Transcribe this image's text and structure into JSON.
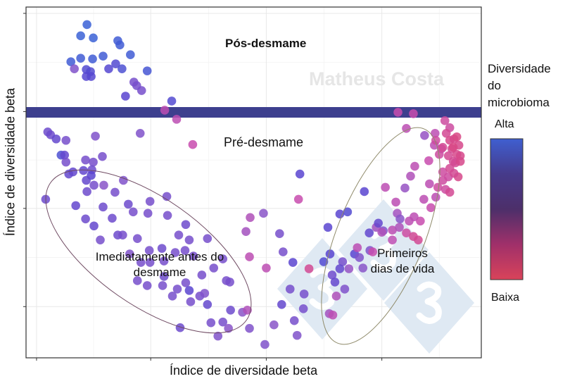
{
  "chart_data": {
    "type": "scatter",
    "title": "",
    "xlabel": "Índice de diversidade beta",
    "ylabel": "Índice de diversidade beta",
    "xlim": [
      0,
      130
    ],
    "ylim": [
      0,
      100
    ],
    "grid": true,
    "tick_labels_shown": false,
    "legend": {
      "title_lines": [
        "Diversidade",
        "do",
        "microbioma"
      ],
      "high_label": "Alta",
      "low_label": "Baixa",
      "placement": "right",
      "gradient_colors": [
        "#3f5fd0",
        "#463a8a",
        "#4d2f6a",
        "#a0306a",
        "#d9435a"
      ]
    },
    "point_colors": {
      "high": "#3b62d6",
      "mid_high": "#5a45d0",
      "mid": "#8a55c8",
      "mid_low": "#c84cae",
      "low": "#e2456a"
    },
    "divider_color": "#3d3f8e",
    "annotations": {
      "post": "Pós-desmame",
      "pre": "Pré-desmame",
      "before_weaning": [
        "Imediatamente antes do",
        "desmame"
      ],
      "first_days": [
        "Primeiros",
        "dias de vida"
      ]
    },
    "watermark": "Matheus Costa",
    "points_note_fields": [
      "x",
      "y",
      "diversity"
    ],
    "points": [
      [
        17.4,
        95,
        1
      ],
      [
        15.6,
        91.8,
        1
      ],
      [
        19.2,
        91.2,
        1
      ],
      [
        26.2,
        90.4,
        0.95
      ],
      [
        26.8,
        89.2,
        0.95
      ],
      [
        29.8,
        86.4,
        0.95
      ],
      [
        12.8,
        84.4,
        0.95
      ],
      [
        15.6,
        85.4,
        0.95
      ],
      [
        19,
        85.2,
        0.95
      ],
      [
        22,
        86,
        0.95
      ],
      [
        25.6,
        83.8,
        0.8
      ],
      [
        27.4,
        82.4,
        0.85
      ],
      [
        17.2,
        82.2,
        0.8
      ],
      [
        18.4,
        81.6,
        0.8
      ],
      [
        17.2,
        80.2,
        0.78
      ],
      [
        18.6,
        80.2,
        0.78
      ],
      [
        23.6,
        82.4,
        0.78
      ],
      [
        34.6,
        81.8,
        0.9
      ],
      [
        13.8,
        82.4,
        0.55
      ],
      [
        30.8,
        78.6,
        0.6
      ],
      [
        31.6,
        77.6,
        0.6
      ],
      [
        33,
        76.2,
        0.6
      ],
      [
        28.4,
        74.6,
        0.75
      ],
      [
        41.6,
        73.2,
        0.8
      ],
      [
        39.6,
        70.6,
        0.3
      ],
      [
        43,
        68,
        0.3
      ],
      [
        6.2,
        64.4,
        0.65
      ],
      [
        7,
        63.6,
        0.65
      ],
      [
        8.6,
        62.4,
        0.7
      ],
      [
        11.4,
        62,
        0.6
      ],
      [
        19.8,
        63.2,
        0.55
      ],
      [
        32.6,
        64,
        0.55
      ],
      [
        47.6,
        60.8,
        0.25
      ],
      [
        10,
        57.8,
        0.85
      ],
      [
        11,
        57.8,
        0.7
      ],
      [
        11.4,
        55.8,
        0.6
      ],
      [
        17,
        56.4,
        0.6
      ],
      [
        19.2,
        55.8,
        0.6
      ],
      [
        21.8,
        57.4,
        0.6
      ],
      [
        13.4,
        53,
        0.7
      ],
      [
        12.2,
        52.4,
        0.7
      ],
      [
        16.4,
        53.4,
        0.7
      ],
      [
        18.8,
        53.6,
        0.65
      ],
      [
        18.6,
        52,
        0.75
      ],
      [
        17.2,
        50.6,
        0.7
      ],
      [
        19.4,
        49.2,
        0.6
      ],
      [
        17.4,
        47.4,
        0.65
      ],
      [
        22.2,
        49.2,
        0.5
      ],
      [
        27.8,
        50.6,
        0.55
      ],
      [
        25.4,
        47.2,
        0.6
      ],
      [
        5.6,
        45.2,
        0.65
      ],
      [
        14.2,
        43.4,
        0.7
      ],
      [
        22,
        43,
        0.65
      ],
      [
        29.2,
        43.8,
        0.65
      ],
      [
        35.4,
        44.6,
        0.6
      ],
      [
        40.2,
        46,
        0.6
      ],
      [
        17,
        39.6,
        0.65
      ],
      [
        19.4,
        37.6,
        0.7
      ],
      [
        24.6,
        39.8,
        0.65
      ],
      [
        30.6,
        41.6,
        0.6
      ],
      [
        34.8,
        41.2,
        0.6
      ],
      [
        21.2,
        33.6,
        0.6
      ],
      [
        26.2,
        35,
        0.65
      ],
      [
        27.6,
        35,
        0.6
      ],
      [
        31.8,
        34,
        0.6
      ],
      [
        40.4,
        40.6,
        0.6
      ],
      [
        45.6,
        38,
        0.65
      ],
      [
        43.6,
        35,
        0.6
      ],
      [
        46.6,
        33.6,
        0.6
      ],
      [
        51.8,
        34,
        0.6
      ],
      [
        38.8,
        31.2,
        0.65
      ],
      [
        35.2,
        30.6,
        0.6
      ],
      [
        42.6,
        30,
        0.6
      ],
      [
        45.4,
        30.6,
        0.6
      ],
      [
        29.6,
        29.6,
        0.55
      ],
      [
        32.8,
        27.2,
        0.6
      ],
      [
        35.4,
        27.2,
        0.6
      ],
      [
        39.4,
        27.6,
        0.6
      ],
      [
        47.8,
        29,
        0.6
      ],
      [
        56.2,
        28.2,
        0.6
      ],
      [
        39.4,
        23.2,
        0.65
      ],
      [
        31.8,
        22,
        0.6
      ],
      [
        34.6,
        20.6,
        0.6
      ],
      [
        39,
        20.6,
        0.6
      ],
      [
        45.6,
        21.4,
        0.6
      ],
      [
        50.2,
        23.6,
        0.6
      ],
      [
        53.6,
        25.6,
        0.6
      ],
      [
        57.2,
        22,
        0.6
      ],
      [
        63.8,
        28.8,
        0.3
      ],
      [
        43.2,
        19.6,
        0.6
      ],
      [
        46.6,
        19.2,
        0.75
      ],
      [
        49.6,
        17.6,
        0.6
      ],
      [
        51.8,
        15.2,
        0.7
      ],
      [
        47,
        16,
        0.6
      ],
      [
        51,
        18.4,
        0.55
      ],
      [
        58.2,
        21.6,
        0.6
      ],
      [
        41.8,
        17.6,
        0.6
      ],
      [
        58.4,
        13.6,
        0.65
      ],
      [
        61.8,
        13,
        0.5
      ],
      [
        63.2,
        13.6,
        0.35
      ],
      [
        52.8,
        10,
        0.6
      ],
      [
        56.2,
        10.2,
        0.6
      ],
      [
        44,
        8.6,
        0.65
      ],
      [
        57.8,
        8.4,
        0.5
      ],
      [
        54.8,
        6.2,
        0.55
      ],
      [
        63.8,
        8.4,
        0.55
      ],
      [
        68.2,
        3.8,
        0.55
      ],
      [
        64,
        40,
        0.35
      ],
      [
        62.8,
        36,
        0.4
      ],
      [
        67.8,
        41.2,
        0.5
      ],
      [
        72.4,
        35.4,
        0.6
      ],
      [
        73.4,
        30.2,
        0.6
      ],
      [
        68.6,
        25.6,
        0.3
      ],
      [
        76.2,
        27.2,
        0.75
      ],
      [
        78.2,
        52.4,
        0.75
      ],
      [
        77.8,
        45.2,
        0.25
      ],
      [
        75.4,
        19.6,
        0.6
      ],
      [
        73,
        15.2,
        0.7
      ],
      [
        79.2,
        14,
        0.6
      ],
      [
        70.8,
        9.4,
        0.5
      ],
      [
        76.6,
        10.6,
        0.6
      ],
      [
        80.8,
        25.4,
        0.15
      ],
      [
        77.4,
        6.4,
        0.55
      ],
      [
        86.2,
        37.2,
        0.75
      ],
      [
        89.6,
        41,
        0.75
      ],
      [
        91.8,
        41.6,
        0.8
      ],
      [
        96.6,
        47.4,
        0.75
      ],
      [
        102.6,
        48.6,
        0.3
      ],
      [
        105.6,
        44.4,
        0.3
      ],
      [
        108.2,
        48.4,
        0.45
      ],
      [
        109.8,
        51.8,
        0.35
      ],
      [
        111,
        54.6,
        0.3
      ],
      [
        115,
        56.2,
        0.25
      ],
      [
        113.8,
        63.4,
        0.45
      ],
      [
        116.8,
        64,
        0.3
      ],
      [
        108.6,
        65.4,
        0.3
      ],
      [
        106.2,
        70,
        0.25
      ],
      [
        110.6,
        69.6,
        0.25
      ],
      [
        98,
        35.6,
        0.7
      ],
      [
        100,
        37.2,
        0.4
      ],
      [
        102,
        36.2,
        0.55
      ],
      [
        100.6,
        38.4,
        0.7
      ],
      [
        93.8,
        29.6,
        0.75
      ],
      [
        95.2,
        28.6,
        0.55
      ],
      [
        98.2,
        30.6,
        0.55
      ],
      [
        101.6,
        35.8,
        0.35
      ],
      [
        104.6,
        36.4,
        0.3
      ],
      [
        106.6,
        37.2,
        0.35
      ],
      [
        106,
        41.2,
        0.4
      ],
      [
        106.8,
        39.6,
        0.5
      ],
      [
        109.4,
        39,
        0.3
      ],
      [
        112.6,
        39,
        0.25
      ],
      [
        110.8,
        40.2,
        0.3
      ],
      [
        113.6,
        45.2,
        0.3
      ],
      [
        117,
        45.8,
        0.3
      ],
      [
        115.6,
        42.8,
        0.25
      ],
      [
        119.8,
        48,
        0.2
      ],
      [
        121,
        47.2,
        0.15
      ],
      [
        119,
        53,
        0.2
      ],
      [
        120.6,
        57.6,
        0.15
      ],
      [
        121.6,
        59.6,
        0.15
      ],
      [
        122.2,
        62.4,
        0.12
      ],
      [
        121,
        65.6,
        0.2
      ],
      [
        119.6,
        67.6,
        0.2
      ],
      [
        122.6,
        55.6,
        0.15
      ],
      [
        123.4,
        51.6,
        0.12
      ],
      [
        120.6,
        51.6,
        0.2
      ],
      [
        123.6,
        60.6,
        0.12
      ],
      [
        124,
        57.6,
        0.12
      ],
      [
        122.2,
        52.6,
        0.15
      ],
      [
        119,
        50.6,
        0.2
      ],
      [
        116.6,
        60.6,
        0.3
      ],
      [
        118.6,
        59.6,
        0.25
      ],
      [
        115.2,
        49.6,
        0.3
      ],
      [
        117.6,
        48.6,
        0.2
      ],
      [
        112,
        33.6,
        0.15
      ],
      [
        108.6,
        35.6,
        0.2
      ],
      [
        110.6,
        34.6,
        0.15
      ],
      [
        96.2,
        25.6,
        0.5
      ],
      [
        99,
        30.2,
        0.25
      ],
      [
        90.4,
        27.4,
        0.6
      ],
      [
        87.4,
        23.6,
        0.65
      ],
      [
        85,
        27.4,
        0.8
      ],
      [
        86.8,
        29.6,
        0.75
      ],
      [
        89.6,
        25.4,
        0.7
      ],
      [
        92.2,
        25.4,
        0.45
      ],
      [
        94.6,
        31.4,
        0.3
      ],
      [
        104.6,
        33.6,
        0.3
      ],
      [
        88.2,
        21.6,
        0.7
      ],
      [
        91,
        19.6,
        0.55
      ],
      [
        88.6,
        17.6,
        0.35
      ],
      [
        86.6,
        12.6,
        0.4
      ],
      [
        87.6,
        12.2,
        0.3
      ],
      [
        79.4,
        18.2,
        0.6
      ],
      [
        120,
        64,
        0.15
      ],
      [
        121,
        62,
        0.12
      ],
      [
        122,
        60,
        0.1
      ],
      [
        123,
        58,
        0.12
      ],
      [
        122,
        56,
        0.15
      ],
      [
        121,
        54,
        0.15
      ],
      [
        118,
        58,
        0.2
      ],
      [
        117,
        62,
        0.2
      ],
      [
        119,
        60,
        0.15
      ],
      [
        123,
        63,
        0.1
      ],
      [
        124,
        56,
        0.12
      ]
    ]
  }
}
